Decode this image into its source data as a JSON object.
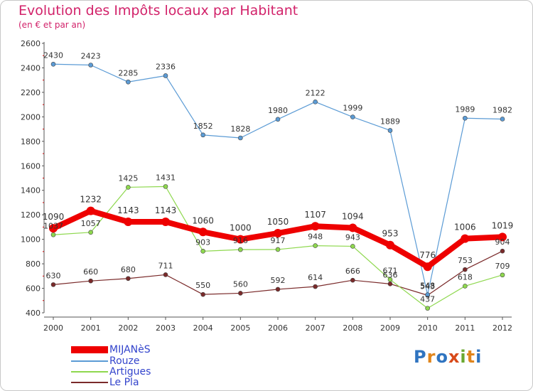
{
  "header": {
    "title": "Evolution des Impôts locaux par Habitant",
    "subtitle": "(en € et par an)"
  },
  "logo": {
    "text": "Proxiti",
    "letter_colors": [
      "#2f74c0",
      "#e0851c",
      "#2f74c0",
      "#d84a1a",
      "#6aa830",
      "#e0851c",
      "#2f74c0"
    ]
  },
  "chart_data": {
    "type": "line",
    "x": [
      "2000",
      "2001",
      "2002",
      "2003",
      "2004",
      "2005",
      "2006",
      "2007",
      "2008",
      "2009",
      "2010",
      "2011",
      "2012"
    ],
    "ylim": [
      400,
      2600
    ],
    "yticks": [
      400,
      600,
      800,
      1000,
      1200,
      1400,
      1600,
      1800,
      2000,
      2200,
      2400,
      2600
    ],
    "grid": false,
    "legend_position": "bottom-left",
    "series": [
      {
        "name": "MIJANèS",
        "color": "#ee0000",
        "values": [
          1090,
          1232,
          1143,
          1143,
          1060,
          1000,
          1050,
          1107,
          1094,
          953,
          776,
          1006,
          1019
        ],
        "labels": [
          "1090",
          "1232",
          "1143",
          "1143",
          "1060",
          "1000",
          "1050",
          "1107",
          "1094",
          "953",
          "776",
          "1006",
          "1019"
        ]
      },
      {
        "name": "Rouze",
        "color": "#5b9bd5",
        "values": [
          2430,
          2423,
          2285,
          2336,
          1852,
          1828,
          1980,
          2122,
          1999,
          1889,
          548,
          1989,
          1982
        ],
        "labels": [
          "2430",
          "2423",
          "2285",
          "2336",
          "1852",
          "1828",
          "1980",
          "2122",
          "1999",
          "1889",
          "548",
          "1989",
          "1982"
        ]
      },
      {
        "name": "Artigues",
        "color": "#8ed84e",
        "values": [
          1037,
          1057,
          1425,
          1431,
          903,
          916,
          917,
          948,
          943,
          671,
          437,
          618,
          709
        ],
        "labels": [
          "1037",
          "1057",
          "1425",
          "1431",
          "903",
          "916",
          "917",
          "948",
          "943",
          "671",
          "437",
          "618",
          "709"
        ]
      },
      {
        "name": "Le Pla",
        "color": "#7a2a2a",
        "values": [
          630,
          660,
          680,
          711,
          550,
          560,
          592,
          614,
          666,
          636,
          543,
          753,
          904
        ],
        "labels": [
          "630",
          "660",
          "680",
          "711",
          "550",
          "560",
          "592",
          "614",
          "666",
          "636",
          "543",
          "753",
          "904"
        ]
      }
    ]
  }
}
